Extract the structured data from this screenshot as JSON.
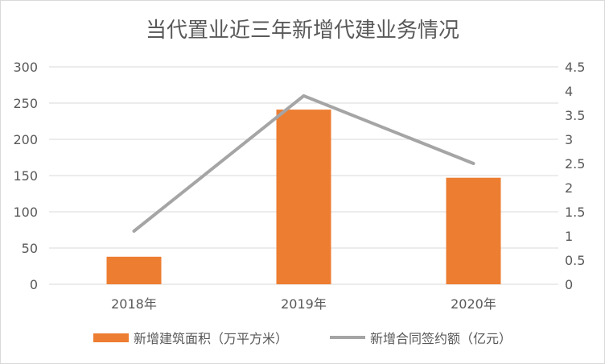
{
  "colors": {
    "bar": "#ed7d31",
    "line": "#a5a5a5",
    "grid": "#d9d9d9",
    "text": "#595959"
  },
  "chart_data": {
    "type": "bar",
    "title": "当代置业近三年新增代建业务情况",
    "categories": [
      "2018年",
      "2019年",
      "2020年"
    ],
    "series": [
      {
        "name": "新增建筑面积（万平方米）",
        "type": "bar",
        "axis": "left",
        "values": [
          38,
          241,
          147
        ]
      },
      {
        "name": "新增合同签约额（亿元）",
        "type": "line",
        "axis": "right",
        "values": [
          1.1,
          3.9,
          2.5
        ]
      }
    ],
    "y_left": {
      "range": [
        0,
        300
      ],
      "ticks": [
        "0",
        "50",
        "100",
        "150",
        "200",
        "250",
        "300"
      ]
    },
    "y_right": {
      "range": [
        0,
        4.5
      ],
      "ticks": [
        "0",
        "0.5",
        "1",
        "1.5",
        "2",
        "2.5",
        "3",
        "3.5",
        "4",
        "4.5"
      ]
    },
    "grid": true,
    "legend_position": "bottom"
  }
}
